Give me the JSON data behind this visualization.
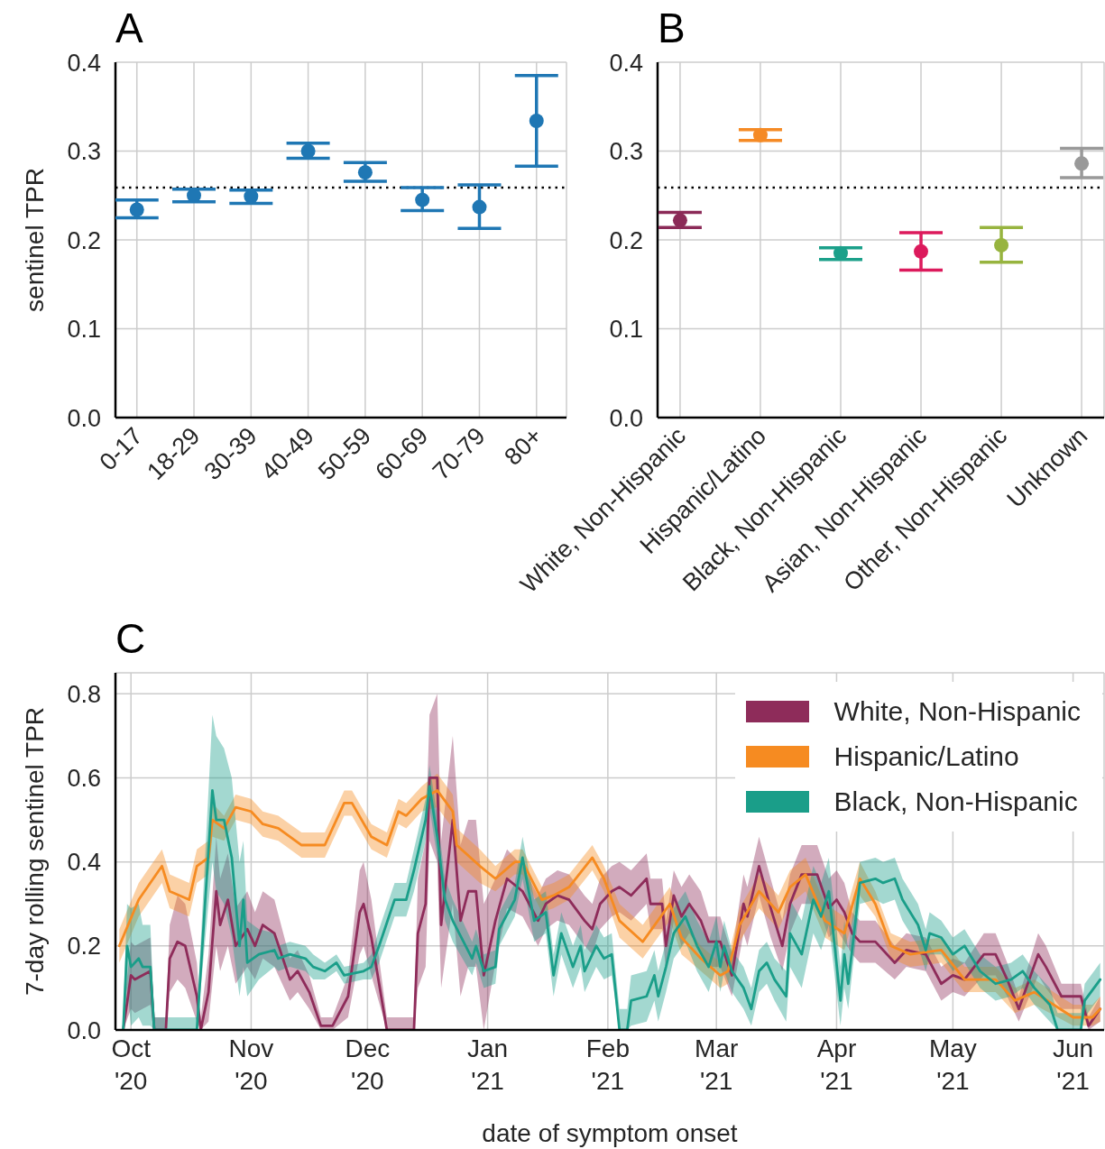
{
  "chart_data": [
    {
      "type": "scatter",
      "title": "A",
      "ylabel": "sentinel TPR",
      "categories": [
        "0-17",
        "18-29",
        "30-39",
        "40-49",
        "50-59",
        "60-69",
        "70-79",
        "80+"
      ],
      "values": [
        0.234,
        0.25,
        0.249,
        0.3,
        0.276,
        0.245,
        0.237,
        0.334
      ],
      "errors": [
        [
          0.225,
          0.245
        ],
        [
          0.243,
          0.257
        ],
        [
          0.241,
          0.256
        ],
        [
          0.292,
          0.309
        ],
        [
          0.266,
          0.287
        ],
        [
          0.233,
          0.259
        ],
        [
          0.213,
          0.262
        ],
        [
          0.283,
          0.385
        ]
      ],
      "color": "#1f77b4",
      "marker": "circle",
      "ylim": [
        0,
        0.4
      ],
      "yticks": [
        {
          "value": 0,
          "label": "0.0"
        },
        {
          "value": 0.1,
          "label": "0.1"
        },
        {
          "value": 0.2,
          "label": "0.2"
        },
        {
          "value": 0.3,
          "label": "0.3"
        },
        {
          "value": 0.4,
          "label": "0.4"
        }
      ],
      "grid": true,
      "ref_lines": [
        {
          "axis": "y",
          "value": 0.259,
          "line_style": "dotted",
          "color": "#000000"
        }
      ]
    },
    {
      "type": "scatter",
      "title": "B",
      "categories": [
        "White, Non-Hispanic",
        "Hispanic/Latino",
        "Black, Non-Hispanic",
        "Asian, Non-Hispanic",
        "Other, Non-Hispanic",
        "Unknown"
      ],
      "values": [
        0.222,
        0.318,
        0.185,
        0.187,
        0.194,
        0.286
      ],
      "errors": [
        [
          0.214,
          0.231
        ],
        [
          0.312,
          0.324
        ],
        [
          0.178,
          0.191
        ],
        [
          0.166,
          0.208
        ],
        [
          0.175,
          0.214
        ],
        [
          0.27,
          0.303
        ]
      ],
      "colors": [
        "#8b2a57",
        "#f58a25",
        "#1ba08a",
        "#dc1a5c",
        "#97b43f",
        "#999999"
      ],
      "marker": "circle",
      "ylim": [
        0,
        0.4
      ],
      "yticks": [
        {
          "value": 0,
          "label": "0.0"
        },
        {
          "value": 0.1,
          "label": "0.1"
        },
        {
          "value": 0.2,
          "label": "0.2"
        },
        {
          "value": 0.3,
          "label": "0.3"
        },
        {
          "value": 0.4,
          "label": "0.4"
        }
      ],
      "grid": true,
      "ref_lines": [
        {
          "axis": "y",
          "value": 0.259,
          "line_style": "dotted",
          "color": "#000000"
        }
      ]
    },
    {
      "type": "line",
      "title": "C",
      "xlabel": "date of symptom onset",
      "ylabel": "7-day rolling sentinel TPR",
      "xlim": [
        "2020-09-27",
        "2021-06-09"
      ],
      "xticks": [
        {
          "value": "2020-10-01",
          "label": "Oct\n'20"
        },
        {
          "value": "2020-11-01",
          "label": "Nov\n'20"
        },
        {
          "value": "2020-12-01",
          "label": "Dec\n'20"
        },
        {
          "value": "2021-01-01",
          "label": "Jan\n'21"
        },
        {
          "value": "2021-02-01",
          "label": "Feb\n'21"
        },
        {
          "value": "2021-03-01",
          "label": "Mar\n'21"
        },
        {
          "value": "2021-04-01",
          "label": "Apr\n'21"
        },
        {
          "value": "2021-05-01",
          "label": "May\n'21"
        },
        {
          "value": "2021-06-01",
          "label": "Jun\n'21"
        }
      ],
      "ylim": [
        0,
        0.85
      ],
      "yticks": [
        {
          "value": 0,
          "label": "0.0"
        },
        {
          "value": 0.2,
          "label": "0.2"
        },
        {
          "value": 0.4,
          "label": "0.4"
        },
        {
          "value": 0.6,
          "label": "0.6"
        },
        {
          "value": 0.8,
          "label": "0.8"
        }
      ],
      "grid": true,
      "legend": "top right",
      "line_style": "solid",
      "marker": "none",
      "series": [
        {
          "name": "White, Non-Hispanic",
          "color": "#8e2c5a",
          "x": [
            "2020-09-29",
            "2020-10-01",
            "2020-10-02",
            "2020-10-06",
            "2020-10-07",
            "2020-10-10",
            "2020-10-11",
            "2020-10-13",
            "2020-10-15",
            "2020-10-18",
            "2020-10-19",
            "2020-10-21",
            "2020-10-23",
            "2020-10-24",
            "2020-10-26",
            "2020-10-28",
            "2020-10-31",
            "2020-11-02",
            "2020-11-04",
            "2020-11-07",
            "2020-11-11",
            "2020-11-13",
            "2020-11-16",
            "2020-11-19",
            "2020-11-22",
            "2020-11-26",
            "2020-11-29",
            "2020-11-30",
            "2020-12-02",
            "2020-12-06",
            "2020-12-13",
            "2020-12-14",
            "2020-12-16",
            "2020-12-17",
            "2020-12-19",
            "2020-12-20",
            "2020-12-23",
            "2020-12-25",
            "2020-12-27",
            "2020-12-29",
            "2020-12-31",
            "2021-01-03",
            "2021-01-06",
            "2021-01-10",
            "2021-01-14",
            "2021-01-16",
            "2021-01-19",
            "2021-01-22",
            "2021-01-26",
            "2021-01-28",
            "2021-01-30",
            "2021-02-02",
            "2021-02-04",
            "2021-02-07",
            "2021-02-11",
            "2021-02-12",
            "2021-02-15",
            "2021-02-16",
            "2021-02-18",
            "2021-02-20",
            "2021-02-22",
            "2021-02-25",
            "2021-02-27",
            "2021-03-02",
            "2021-03-05",
            "2021-03-08",
            "2021-03-09",
            "2021-03-12",
            "2021-03-15",
            "2021-03-18",
            "2021-03-20",
            "2021-03-23",
            "2021-03-27",
            "2021-03-30",
            "2021-04-01",
            "2021-04-03",
            "2021-04-05",
            "2021-04-07",
            "2021-04-11",
            "2021-04-16",
            "2021-04-19",
            "2021-04-24",
            "2021-04-28",
            "2021-05-01",
            "2021-05-04",
            "2021-05-09",
            "2021-05-12",
            "2021-05-15",
            "2021-05-18",
            "2021-05-23",
            "2021-05-25",
            "2021-05-29",
            "2021-06-03",
            "2021-06-05",
            "2021-06-08"
          ],
          "values": [
            0.0,
            0.13,
            0.12,
            0.14,
            0.0,
            0.0,
            0.17,
            0.21,
            0.2,
            0.08,
            0.0,
            0.09,
            0.33,
            0.25,
            0.31,
            0.2,
            0.24,
            0.2,
            0.25,
            0.23,
            0.12,
            0.14,
            0.09,
            0.01,
            0.01,
            0.08,
            0.28,
            0.3,
            0.22,
            0.0,
            0.0,
            0.23,
            0.3,
            0.6,
            0.6,
            0.25,
            0.5,
            0.26,
            0.33,
            0.33,
            0.13,
            0.26,
            0.36,
            0.33,
            0.26,
            0.3,
            0.32,
            0.31,
            0.26,
            0.24,
            0.3,
            0.33,
            0.34,
            0.32,
            0.36,
            0.3,
            0.3,
            0.2,
            0.32,
            0.27,
            0.3,
            0.26,
            0.21,
            0.21,
            0.13,
            0.3,
            0.27,
            0.39,
            0.29,
            0.2,
            0.3,
            0.37,
            0.37,
            0.29,
            0.31,
            0.28,
            0.23,
            0.21,
            0.21,
            0.16,
            0.19,
            0.18,
            0.11,
            0.13,
            0.12,
            0.18,
            0.18,
            0.12,
            0.05,
            0.18,
            0.15,
            0.08,
            0.08,
            0.01,
            0.05
          ],
          "lower": [
            0.0,
            0.05,
            0.04,
            0.06,
            0.0,
            0.0,
            0.09,
            0.12,
            0.1,
            0.02,
            0.0,
            0.02,
            0.2,
            0.14,
            0.2,
            0.11,
            0.15,
            0.12,
            0.17,
            0.15,
            0.07,
            0.09,
            0.05,
            0.0,
            0.0,
            0.03,
            0.18,
            0.2,
            0.13,
            0.0,
            0.0,
            0.1,
            0.15,
            0.45,
            0.4,
            0.1,
            0.3,
            0.08,
            0.15,
            0.15,
            0.0,
            0.16,
            0.29,
            0.27,
            0.2,
            0.24,
            0.26,
            0.25,
            0.2,
            0.18,
            0.24,
            0.27,
            0.28,
            0.26,
            0.3,
            0.24,
            0.24,
            0.14,
            0.26,
            0.2,
            0.23,
            0.19,
            0.15,
            0.15,
            0.08,
            0.23,
            0.2,
            0.32,
            0.22,
            0.14,
            0.23,
            0.3,
            0.3,
            0.22,
            0.24,
            0.21,
            0.18,
            0.16,
            0.16,
            0.12,
            0.15,
            0.14,
            0.07,
            0.09,
            0.08,
            0.13,
            0.13,
            0.08,
            0.02,
            0.13,
            0.1,
            0.05,
            0.05,
            0.0,
            0.02
          ],
          "upper": [
            0.04,
            0.21,
            0.2,
            0.22,
            0.03,
            0.03,
            0.25,
            0.32,
            0.3,
            0.16,
            0.03,
            0.18,
            0.46,
            0.36,
            0.42,
            0.29,
            0.33,
            0.28,
            0.33,
            0.31,
            0.17,
            0.19,
            0.13,
            0.03,
            0.03,
            0.13,
            0.38,
            0.4,
            0.31,
            0.03,
            0.03,
            0.36,
            0.45,
            0.75,
            0.8,
            0.45,
            0.7,
            0.44,
            0.5,
            0.5,
            0.3,
            0.36,
            0.43,
            0.39,
            0.32,
            0.36,
            0.38,
            0.37,
            0.32,
            0.3,
            0.36,
            0.39,
            0.4,
            0.38,
            0.42,
            0.36,
            0.36,
            0.26,
            0.38,
            0.34,
            0.37,
            0.33,
            0.27,
            0.27,
            0.18,
            0.37,
            0.34,
            0.46,
            0.36,
            0.26,
            0.37,
            0.44,
            0.44,
            0.36,
            0.38,
            0.35,
            0.28,
            0.26,
            0.26,
            0.2,
            0.23,
            0.22,
            0.15,
            0.17,
            0.16,
            0.23,
            0.23,
            0.16,
            0.08,
            0.23,
            0.2,
            0.11,
            0.11,
            0.03,
            0.08
          ]
        },
        {
          "name": "Hispanic/Latino",
          "color": "#f68b21",
          "x": [
            "2020-09-28",
            "2020-10-03",
            "2020-10-09",
            "2020-10-11",
            "2020-10-16",
            "2020-10-18",
            "2020-10-21",
            "2020-10-22",
            "2020-10-25",
            "2020-10-28",
            "2020-11-01",
            "2020-11-04",
            "2020-11-08",
            "2020-11-14",
            "2020-11-20",
            "2020-11-25",
            "2020-11-27",
            "2020-12-02",
            "2020-12-06",
            "2020-12-09",
            "2020-12-11",
            "2020-12-15",
            "2020-12-19",
            "2020-12-23",
            "2020-12-24",
            "2020-12-30",
            "2021-01-03",
            "2021-01-08",
            "2021-01-10",
            "2021-01-15",
            "2021-01-18",
            "2021-01-22",
            "2021-01-28",
            "2021-01-31",
            "2021-02-04",
            "2021-02-10",
            "2021-02-17",
            "2021-02-20",
            "2021-02-25",
            "2021-03-02",
            "2021-03-04",
            "2021-03-07",
            "2021-03-12",
            "2021-03-15",
            "2021-03-17",
            "2021-03-20",
            "2021-03-24",
            "2021-03-29",
            "2021-04-03",
            "2021-04-07",
            "2021-04-11",
            "2021-04-15",
            "2021-04-20",
            "2021-04-28",
            "2021-05-04",
            "2021-05-12",
            "2021-05-17",
            "2021-05-22",
            "2021-06-01",
            "2021-06-06",
            "2021-06-08"
          ],
          "values": [
            0.2,
            0.31,
            0.39,
            0.33,
            0.31,
            0.39,
            0.41,
            0.5,
            0.48,
            0.53,
            0.52,
            0.49,
            0.48,
            0.44,
            0.44,
            0.54,
            0.54,
            0.46,
            0.44,
            0.52,
            0.51,
            0.55,
            0.57,
            0.52,
            0.44,
            0.39,
            0.36,
            0.4,
            0.4,
            0.31,
            0.32,
            0.34,
            0.41,
            0.36,
            0.26,
            0.21,
            0.3,
            0.22,
            0.17,
            0.13,
            0.14,
            0.25,
            0.33,
            0.3,
            0.28,
            0.34,
            0.37,
            0.26,
            0.23,
            0.36,
            0.3,
            0.2,
            0.18,
            0.19,
            0.12,
            0.12,
            0.07,
            0.09,
            0.03,
            0.03,
            0.05
          ],
          "lower": [
            0.16,
            0.27,
            0.35,
            0.29,
            0.27,
            0.35,
            0.37,
            0.46,
            0.45,
            0.5,
            0.49,
            0.46,
            0.45,
            0.41,
            0.41,
            0.51,
            0.51,
            0.43,
            0.41,
            0.49,
            0.48,
            0.52,
            0.53,
            0.48,
            0.4,
            0.35,
            0.33,
            0.37,
            0.37,
            0.28,
            0.29,
            0.31,
            0.38,
            0.33,
            0.22,
            0.17,
            0.26,
            0.18,
            0.14,
            0.1,
            0.11,
            0.21,
            0.29,
            0.26,
            0.24,
            0.3,
            0.33,
            0.22,
            0.19,
            0.32,
            0.27,
            0.17,
            0.15,
            0.16,
            0.09,
            0.09,
            0.04,
            0.06,
            0.01,
            0.01,
            0.02
          ],
          "upper": [
            0.24,
            0.35,
            0.43,
            0.37,
            0.35,
            0.43,
            0.45,
            0.54,
            0.51,
            0.56,
            0.55,
            0.52,
            0.51,
            0.47,
            0.47,
            0.57,
            0.57,
            0.49,
            0.47,
            0.55,
            0.54,
            0.58,
            0.61,
            0.56,
            0.48,
            0.43,
            0.39,
            0.43,
            0.43,
            0.34,
            0.35,
            0.37,
            0.44,
            0.39,
            0.3,
            0.25,
            0.34,
            0.26,
            0.2,
            0.16,
            0.17,
            0.29,
            0.37,
            0.34,
            0.32,
            0.38,
            0.41,
            0.3,
            0.27,
            0.4,
            0.33,
            0.23,
            0.21,
            0.22,
            0.15,
            0.15,
            0.1,
            0.12,
            0.06,
            0.06,
            0.08
          ]
        },
        {
          "name": "Black, Non-Hispanic",
          "color": "#1a9e89",
          "x": [
            "2020-09-29",
            "2020-09-30",
            "2020-10-01",
            "2020-10-03",
            "2020-10-04",
            "2020-10-06",
            "2020-10-07",
            "2020-10-18",
            "2020-10-22",
            "2020-10-23",
            "2020-10-25",
            "2020-10-27",
            "2020-10-29",
            "2020-10-30",
            "2020-10-31",
            "2020-11-03",
            "2020-11-07",
            "2020-11-08",
            "2020-11-11",
            "2020-11-15",
            "2020-11-17",
            "2020-11-20",
            "2020-11-23",
            "2020-11-25",
            "2020-11-30",
            "2020-12-02",
            "2020-12-04",
            "2020-12-08",
            "2020-12-11",
            "2020-12-13",
            "2020-12-16",
            "2020-12-17",
            "2020-12-19",
            "2020-12-21",
            "2020-12-23",
            "2020-12-28",
            "2020-12-29",
            "2020-12-31",
            "2021-01-03",
            "2021-01-04",
            "2021-01-08",
            "2021-01-10",
            "2021-01-13",
            "2021-01-16",
            "2021-01-18",
            "2021-01-20",
            "2021-01-23",
            "2021-01-25",
            "2021-01-26",
            "2021-01-29",
            "2021-01-31",
            "2021-02-02",
            "2021-02-04",
            "2021-02-06",
            "2021-02-07",
            "2021-02-11",
            "2021-02-13",
            "2021-02-14",
            "2021-02-16",
            "2021-02-18",
            "2021-02-21",
            "2021-02-24",
            "2021-02-27",
            "2021-03-01",
            "2021-03-02",
            "2021-03-03",
            "2021-03-05",
            "2021-03-08",
            "2021-03-10",
            "2021-03-12",
            "2021-03-14",
            "2021-03-16",
            "2021-03-19",
            "2021-03-20",
            "2021-03-23",
            "2021-03-26",
            "2021-03-28",
            "2021-03-30",
            "2021-04-02",
            "2021-04-03",
            "2021-04-04",
            "2021-04-07",
            "2021-04-11",
            "2021-04-13",
            "2021-04-16",
            "2021-04-18",
            "2021-04-22",
            "2021-04-24",
            "2021-04-25",
            "2021-04-28",
            "2021-05-01",
            "2021-05-04",
            "2021-05-08",
            "2021-05-12",
            "2021-05-16",
            "2021-05-19",
            "2021-05-22",
            "2021-05-26",
            "2021-05-28",
            "2021-06-03",
            "2021-06-04",
            "2021-06-08"
          ],
          "values": [
            0.0,
            0.2,
            0.15,
            0.17,
            0.15,
            0.15,
            0.0,
            0.0,
            0.57,
            0.5,
            0.5,
            0.41,
            0.2,
            0.31,
            0.16,
            0.18,
            0.19,
            0.17,
            0.18,
            0.17,
            0.15,
            0.14,
            0.16,
            0.13,
            0.14,
            0.15,
            0.2,
            0.31,
            0.31,
            0.38,
            0.5,
            0.58,
            0.46,
            0.31,
            0.26,
            0.17,
            0.2,
            0.14,
            0.15,
            0.24,
            0.31,
            0.41,
            0.26,
            0.28,
            0.13,
            0.23,
            0.15,
            0.2,
            0.14,
            0.2,
            0.17,
            0.18,
            0.0,
            0.0,
            0.07,
            0.08,
            0.13,
            0.08,
            0.15,
            0.23,
            0.27,
            0.2,
            0.15,
            0.21,
            0.15,
            0.2,
            0.14,
            0.1,
            0.05,
            0.14,
            0.16,
            0.12,
            0.08,
            0.23,
            0.18,
            0.31,
            0.27,
            0.33,
            0.07,
            0.18,
            0.11,
            0.35,
            0.36,
            0.35,
            0.36,
            0.31,
            0.25,
            0.19,
            0.23,
            0.22,
            0.18,
            0.2,
            0.14,
            0.11,
            0.12,
            0.14,
            0.1,
            0.06,
            0.0,
            0.0,
            0.07,
            0.12
          ],
          "lower": [
            0.0,
            0.1,
            0.01,
            0.03,
            0.01,
            0.01,
            0.0,
            0.0,
            0.4,
            0.33,
            0.3,
            0.22,
            0.08,
            0.15,
            0.08,
            0.12,
            0.15,
            0.14,
            0.15,
            0.14,
            0.12,
            0.12,
            0.14,
            0.11,
            0.12,
            0.12,
            0.16,
            0.27,
            0.27,
            0.33,
            0.45,
            0.53,
            0.41,
            0.26,
            0.21,
            0.13,
            0.16,
            0.1,
            0.11,
            0.2,
            0.27,
            0.36,
            0.21,
            0.23,
            0.08,
            0.18,
            0.1,
            0.15,
            0.09,
            0.15,
            0.12,
            0.13,
            0.0,
            0.0,
            0.01,
            0.02,
            0.07,
            0.02,
            0.09,
            0.17,
            0.21,
            0.14,
            0.09,
            0.15,
            0.09,
            0.14,
            0.09,
            0.05,
            0.01,
            0.09,
            0.11,
            0.07,
            0.02,
            0.15,
            0.1,
            0.23,
            0.19,
            0.25,
            0.01,
            0.1,
            0.05,
            0.3,
            0.31,
            0.3,
            0.31,
            0.26,
            0.2,
            0.14,
            0.18,
            0.18,
            0.14,
            0.16,
            0.1,
            0.07,
            0.08,
            0.1,
            0.06,
            0.02,
            0.0,
            0.0,
            0.03,
            0.08
          ],
          "upper": [
            0.03,
            0.3,
            0.29,
            0.3,
            0.25,
            0.25,
            0.03,
            0.03,
            0.75,
            0.7,
            0.67,
            0.6,
            0.4,
            0.45,
            0.26,
            0.24,
            0.23,
            0.2,
            0.21,
            0.2,
            0.18,
            0.16,
            0.18,
            0.15,
            0.16,
            0.18,
            0.24,
            0.35,
            0.35,
            0.43,
            0.55,
            0.63,
            0.51,
            0.36,
            0.31,
            0.21,
            0.24,
            0.18,
            0.19,
            0.28,
            0.35,
            0.46,
            0.31,
            0.33,
            0.18,
            0.28,
            0.2,
            0.25,
            0.19,
            0.25,
            0.22,
            0.23,
            0.05,
            0.05,
            0.13,
            0.14,
            0.19,
            0.14,
            0.21,
            0.29,
            0.33,
            0.26,
            0.21,
            0.27,
            0.21,
            0.26,
            0.19,
            0.15,
            0.1,
            0.19,
            0.21,
            0.17,
            0.14,
            0.31,
            0.26,
            0.39,
            0.35,
            0.41,
            0.15,
            0.26,
            0.19,
            0.4,
            0.41,
            0.4,
            0.41,
            0.36,
            0.3,
            0.24,
            0.28,
            0.26,
            0.22,
            0.24,
            0.18,
            0.15,
            0.16,
            0.18,
            0.14,
            0.1,
            0.04,
            0.04,
            0.11,
            0.16
          ]
        }
      ]
    }
  ]
}
